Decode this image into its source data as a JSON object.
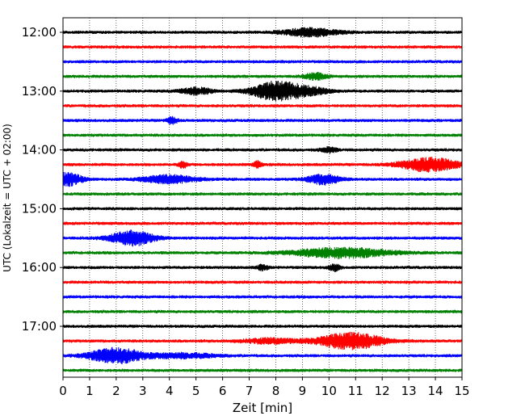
{
  "chart_data": {
    "type": "line",
    "title": "",
    "xlabel": "Zeit  [min]",
    "ylabel": "UTC (Lokalzeit = UTC + 02:00)",
    "xlim": [
      0,
      15
    ],
    "x_ticks": [
      "0",
      "1",
      "2",
      "3",
      "4",
      "5",
      "6",
      "7",
      "8",
      "9",
      "10",
      "11",
      "12",
      "13",
      "14",
      "15"
    ],
    "y_ticks": [
      {
        "label": "12:00",
        "row": 0
      },
      {
        "label": "13:00",
        "row": 4
      },
      {
        "label": "14:00",
        "row": 8
      },
      {
        "label": "15:00",
        "row": 12
      },
      {
        "label": "16:00",
        "row": 16
      },
      {
        "label": "17:00",
        "row": 20
      }
    ],
    "grid": "vertical dotted at each minute",
    "row_interval_min": 15,
    "colors": [
      "#000000",
      "#ff0000",
      "#0000ff",
      "#008000"
    ],
    "traces": [
      {
        "start": "12:00",
        "events": [
          {
            "t": 9.3,
            "amp": 5,
            "w": 1.0
          }
        ]
      },
      {
        "start": "12:15",
        "events": []
      },
      {
        "start": "12:30",
        "events": []
      },
      {
        "start": "12:45",
        "events": [
          {
            "t": 9.5,
            "amp": 4,
            "w": 0.4
          }
        ]
      },
      {
        "start": "13:00",
        "events": [
          {
            "t": 8.0,
            "amp": 11,
            "w": 0.9
          },
          {
            "t": 5.0,
            "amp": 4,
            "w": 0.6
          },
          {
            "t": 9.2,
            "amp": 4,
            "w": 0.8
          }
        ]
      },
      {
        "start": "13:15",
        "events": []
      },
      {
        "start": "13:30",
        "events": [
          {
            "t": 4.1,
            "amp": 4,
            "w": 0.2
          }
        ]
      },
      {
        "start": "13:45",
        "events": []
      },
      {
        "start": "14:00",
        "events": [
          {
            "t": 10.0,
            "amp": 3,
            "w": 0.3
          }
        ]
      },
      {
        "start": "14:15",
        "events": [
          {
            "t": 13.8,
            "amp": 8,
            "w": 1.1
          },
          {
            "t": 4.5,
            "amp": 4,
            "w": 0.15
          },
          {
            "t": 7.3,
            "amp": 4,
            "w": 0.15
          }
        ]
      },
      {
        "start": "14:30",
        "events": [
          {
            "t": 0.2,
            "amp": 8,
            "w": 0.5
          },
          {
            "t": 4.0,
            "amp": 5,
            "w": 1.0
          },
          {
            "t": 9.8,
            "amp": 6,
            "w": 0.6
          }
        ]
      },
      {
        "start": "14:45",
        "events": []
      },
      {
        "start": "15:00",
        "events": []
      },
      {
        "start": "15:15",
        "events": []
      },
      {
        "start": "15:30",
        "events": [
          {
            "t": 2.6,
            "amp": 9,
            "w": 0.8
          }
        ]
      },
      {
        "start": "15:45",
        "events": [
          {
            "t": 10.5,
            "amp": 6,
            "w": 1.8
          }
        ]
      },
      {
        "start": "16:00",
        "events": [
          {
            "t": 10.2,
            "amp": 4,
            "w": 0.2
          },
          {
            "t": 7.5,
            "amp": 3,
            "w": 0.2
          }
        ]
      },
      {
        "start": "16:15",
        "events": []
      },
      {
        "start": "16:30",
        "events": []
      },
      {
        "start": "16:45",
        "events": []
      },
      {
        "start": "17:00",
        "events": []
      },
      {
        "start": "17:15",
        "events": [
          {
            "t": 10.8,
            "amp": 10,
            "w": 1.2
          },
          {
            "t": 7.8,
            "amp": 3,
            "w": 1.0
          }
        ]
      },
      {
        "start": "17:30",
        "events": [
          {
            "t": 2.0,
            "amp": 9,
            "w": 1.0
          },
          {
            "t": 4.5,
            "amp": 3,
            "w": 1.2
          }
        ]
      },
      {
        "start": "17:45",
        "events": []
      }
    ]
  }
}
